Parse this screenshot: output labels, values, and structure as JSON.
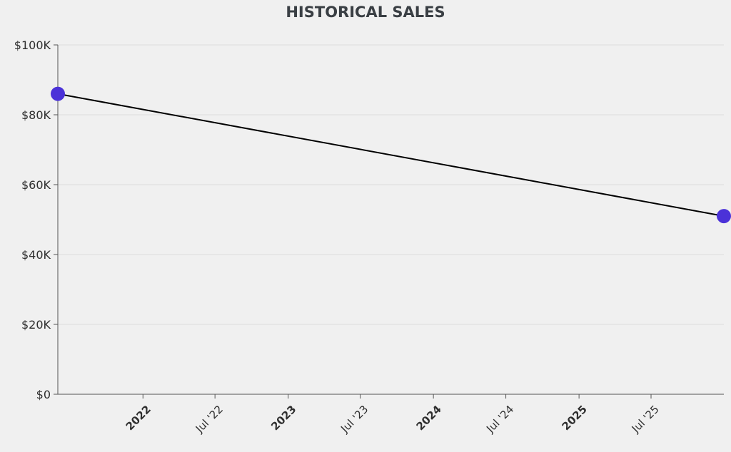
{
  "chart_data": {
    "type": "line",
    "title": "HISTORICAL SALES",
    "xlabel": "",
    "ylabel": "",
    "x_range": [
      "2021-06-01",
      "2025-12-31"
    ],
    "ylim": [
      0,
      100000
    ],
    "grid": true,
    "y_ticks": [
      {
        "value": 0,
        "label": "$0"
      },
      {
        "value": 20000,
        "label": "$20K"
      },
      {
        "value": 40000,
        "label": "$40K"
      },
      {
        "value": 60000,
        "label": "$60K"
      },
      {
        "value": 80000,
        "label": "$80K"
      },
      {
        "value": 100000,
        "label": "$100K"
      }
    ],
    "x_ticks": [
      {
        "date": "2022-01-01",
        "label": "2022",
        "major": true
      },
      {
        "date": "2022-07-01",
        "label": "Jul '22",
        "major": false
      },
      {
        "date": "2023-01-01",
        "label": "2023",
        "major": true
      },
      {
        "date": "2023-07-01",
        "label": "Jul '23",
        "major": false
      },
      {
        "date": "2024-01-01",
        "label": "2024",
        "major": true
      },
      {
        "date": "2024-07-01",
        "label": "Jul '24",
        "major": false
      },
      {
        "date": "2025-01-01",
        "label": "2025",
        "major": true
      },
      {
        "date": "2025-07-01",
        "label": "Jul '25",
        "major": false
      }
    ],
    "series": [
      {
        "points": [
          {
            "x": "2021-06-01",
            "y": 86000
          },
          {
            "x": "2025-12-31",
            "y": 51000
          }
        ]
      }
    ],
    "colors": {
      "line": "#000000",
      "marker": "#4b32d8",
      "grid": "#dcdcdc",
      "axis": "#555555"
    }
  }
}
